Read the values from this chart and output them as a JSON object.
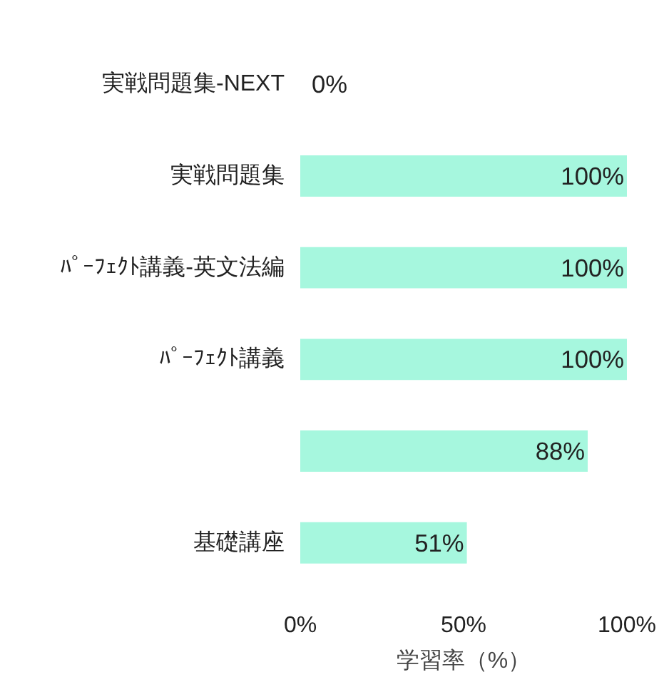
{
  "chart_data": {
    "type": "bar",
    "orientation": "horizontal",
    "xlabel": "学習率（%）",
    "categories": [
      "実戦問題集-NEXT",
      "実戦問題集",
      "ﾊﾟｰﾌｪｸﾄ講義-英文法編",
      "ﾊﾟｰﾌｪｸﾄ講義",
      null,
      "基礎講座"
    ],
    "values": [
      0,
      100,
      100,
      100,
      88,
      51
    ],
    "value_labels": [
      "0%",
      "100%",
      "100%",
      "100%",
      "88%",
      "51%"
    ],
    "color": "#a6f7de",
    "xlim": [
      0,
      100
    ],
    "xticks": [
      {
        "value": 0,
        "label": "0%"
      },
      {
        "value": 50,
        "label": "50%"
      },
      {
        "value": 100,
        "label": "100%"
      }
    ],
    "grid": false
  }
}
